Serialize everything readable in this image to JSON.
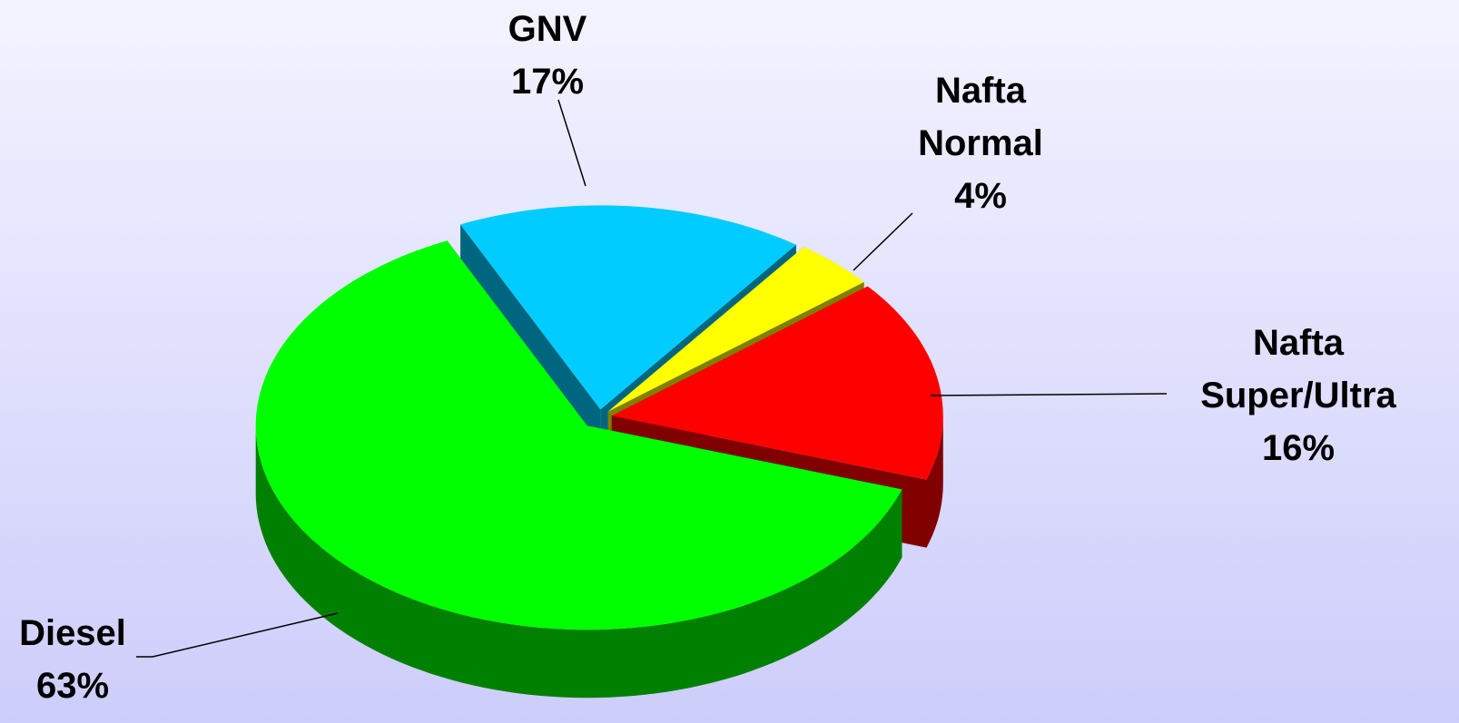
{
  "chart_data": {
    "type": "pie3d",
    "categories": [
      "GNV",
      "Nafta Normal",
      "Nafta Super/Ultra",
      "Diesel"
    ],
    "values": [
      17,
      4,
      16,
      63
    ],
    "value_labels": [
      "17%",
      "4%",
      "16%",
      "63%"
    ],
    "colors": [
      "#00ccff",
      "#ffff00",
      "#ff0000",
      "#00ff00"
    ]
  }
}
